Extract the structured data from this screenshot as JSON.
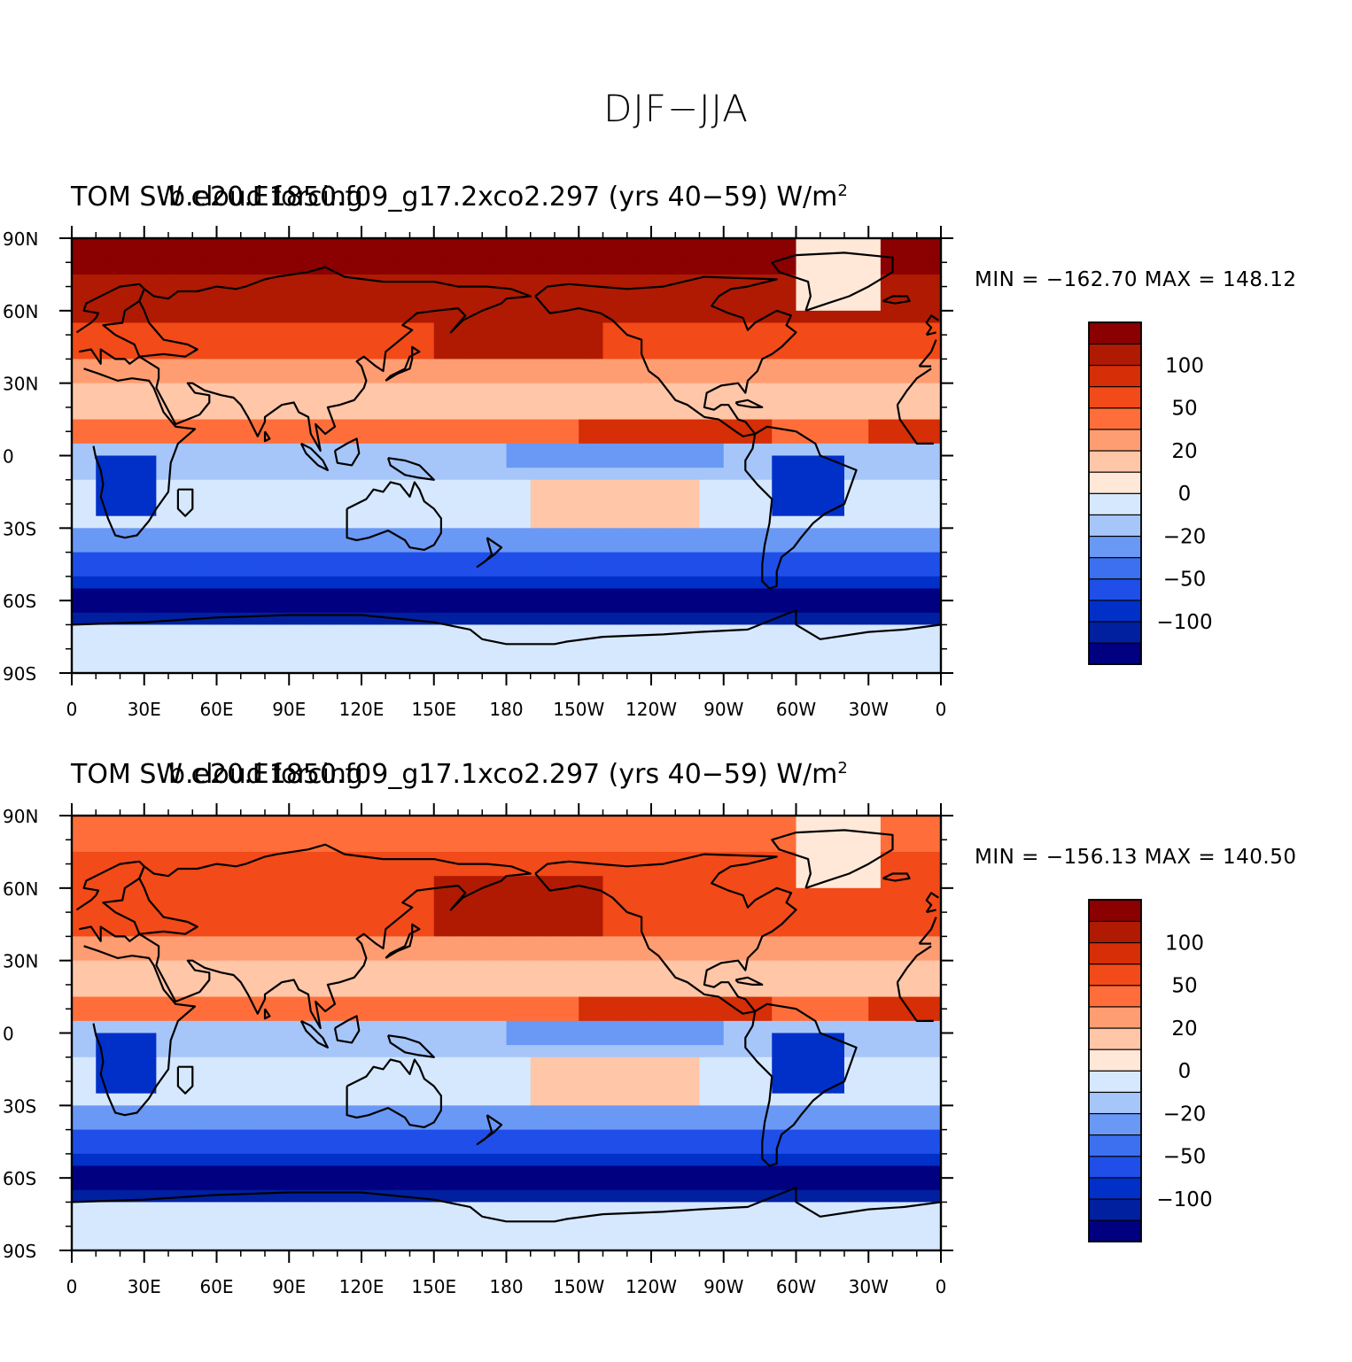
{
  "figure_title": "DJF−JJA",
  "colorbar": {
    "colors": [
      "#000080",
      "#0020a0",
      "#0030c8",
      "#1f4fe8",
      "#3d70f0",
      "#6a98f5",
      "#a6c6fa",
      "#d6e8fd",
      "#ffe8d8",
      "#ffc6a8",
      "#ff9d72",
      "#ff6e3a",
      "#f24a18",
      "#d62e06",
      "#b01a02",
      "#8b0000"
    ],
    "labels": [
      "−100",
      "−50",
      "−20",
      "0",
      "20",
      "50",
      "100"
    ],
    "label_boundaries": [
      2,
      4,
      6,
      8,
      10,
      12,
      14
    ]
  },
  "axes": {
    "lat_labels": [
      "90N",
      "60N",
      "30N",
      "0",
      "30S",
      "60S",
      "90S"
    ],
    "lon_labels": [
      "0",
      "30E",
      "60E",
      "90E",
      "120E",
      "150E",
      "180",
      "150W",
      "120W",
      "90W",
      "60W",
      "30W",
      "0"
    ]
  },
  "panels": [
    {
      "title_left": "TOM SW cloud forcing",
      "title_right": "b.e20.E1850.f09_g17.2xco2.297 (yrs 40−59)",
      "units": "W/m",
      "units_sup": "2",
      "minmax": "MIN = −162.70  MAX = 148.12"
    },
    {
      "title_left": "TOM SW cloud forcing",
      "title_right": "b.e20.E1850.f09_g17.1xco2.297 (yrs 40−59)",
      "units": "W/m",
      "units_sup": "2",
      "minmax": "MIN = −156.13  MAX = 140.50"
    }
  ]
}
